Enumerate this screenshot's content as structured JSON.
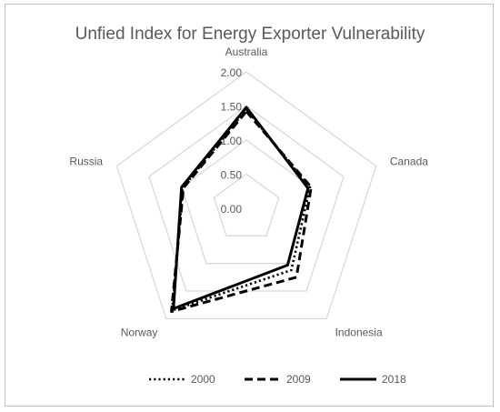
{
  "chart_data": {
    "type": "radar",
    "title": "Unfied Index for Energy Exporter Vulnerability",
    "categories": [
      "Australia",
      "Canada",
      "Indonesia",
      "Norway",
      "Russia"
    ],
    "radial_ticks": [
      "0.00",
      "0.50",
      "1.00",
      "1.50",
      "2.00"
    ],
    "rlim": [
      0,
      2
    ],
    "grid": true,
    "legend_position": "bottom",
    "series": [
      {
        "name": "2000",
        "style": "dotted",
        "color": "#000000",
        "values": [
          1.45,
          0.98,
          1.12,
          1.85,
          0.98
        ]
      },
      {
        "name": "2009",
        "style": "dashed",
        "color": "#000000",
        "values": [
          1.42,
          1.0,
          1.25,
          1.87,
          0.97
        ]
      },
      {
        "name": "2018",
        "style": "solid",
        "color": "#000000",
        "values": [
          1.48,
          0.95,
          1.03,
          1.82,
          1.0
        ]
      }
    ]
  }
}
